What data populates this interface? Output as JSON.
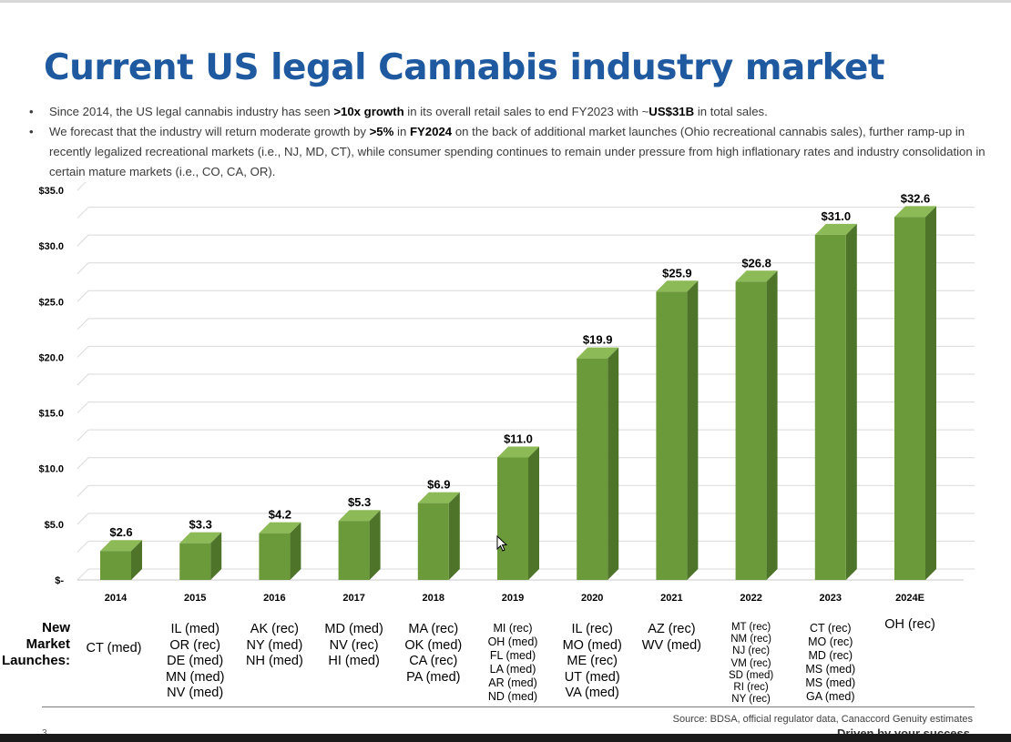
{
  "title": "Current US legal Cannabis industry market",
  "bullets": [
    [
      {
        "t": "Since 2014, the US legal cannabis industry has seen ",
        "b": false
      },
      {
        "t": ">10x growth",
        "b": true
      },
      {
        "t": " in its overall retail sales to end FY2023 with ~",
        "b": false
      },
      {
        "t": "US$31B",
        "b": true
      },
      {
        "t": " in total sales.",
        "b": false
      }
    ],
    [
      {
        "t": "We forecast that the industry will return moderate growth by ",
        "b": false
      },
      {
        "t": ">5%",
        "b": true
      },
      {
        "t": " in ",
        "b": false
      },
      {
        "t": "FY2024",
        "b": true
      },
      {
        "t": " on the back of additional market launches (Ohio recreational cannabis sales), further ramp-up in recently legalized recreational markets (i.e., NJ, MD, CT), while consumer spending continues to remain under pressure from high inflationary rates and industry consolidation in certain mature markets (i.e., CO, CA, OR).",
        "b": false
      }
    ]
  ],
  "chart_data": {
    "type": "bar",
    "categories": [
      "2014",
      "2015",
      "2016",
      "2017",
      "2018",
      "2019",
      "2020",
      "2021",
      "2022",
      "2023",
      "2024E"
    ],
    "values": [
      2.6,
      3.3,
      4.2,
      5.3,
      6.9,
      11.0,
      19.9,
      25.9,
      26.8,
      31.0,
      32.6
    ],
    "data_labels": [
      "$2.6",
      "$3.3",
      "$4.2",
      "$5.3",
      "$6.9",
      "$11.0",
      "$19.9",
      "$25.9",
      "$26.8",
      "$31.0",
      "$32.6"
    ],
    "y_ticks": [
      0,
      5,
      10,
      15,
      20,
      25,
      30,
      35
    ],
    "y_tick_labels": [
      "$-",
      "$5.0",
      "$10.0",
      "$15.0",
      "$20.0",
      "$25.0",
      "$30.0",
      "$35.0"
    ],
    "ylim": [
      0,
      35
    ],
    "grid": true,
    "style": "3d",
    "colors": {
      "bar_front": "#6a9a3a",
      "bar_side": "#4d7429",
      "bar_top": "#8cba57",
      "grid": "#d9d9d9"
    }
  },
  "launches_label": [
    "New",
    "Market",
    "Launches:"
  ],
  "launches": [
    [
      "CT (med)"
    ],
    [
      "IL (med)",
      "OR (rec)",
      "DE (med)",
      "MN (med)",
      "NV (med)"
    ],
    [
      "AK  (rec)",
      "NY (med)",
      "NH (med)"
    ],
    [
      "MD (med)",
      "NV (rec)",
      "HI (med)"
    ],
    [
      "MA (rec)",
      "OK (med)",
      "CA (rec)",
      "PA (med)"
    ],
    [
      "MI (rec)",
      "OH (med)",
      "FL (med)",
      "LA (med)",
      "AR (med)",
      "ND (med)"
    ],
    [
      "IL (rec)",
      "MO (med)",
      "ME (rec)",
      "UT (med)",
      "VA (med)"
    ],
    [
      "AZ (rec)",
      "WV (med)"
    ],
    [
      "MT (rec)",
      "NM (rec)",
      "NJ (rec)",
      "VM (rec)",
      "SD (med)",
      "RI (rec)",
      "NY (rec)"
    ],
    [
      "CT (rec)",
      "MO (rec)",
      "MD (rec)",
      "MS (med)",
      "MS (med)",
      "GA (med)"
    ],
    [
      "OH (rec)"
    ]
  ],
  "source": "Source: BDSA, official regulator data, Canaccord Genuity estimates",
  "page_number": "3",
  "tagline": "Driven by your success"
}
